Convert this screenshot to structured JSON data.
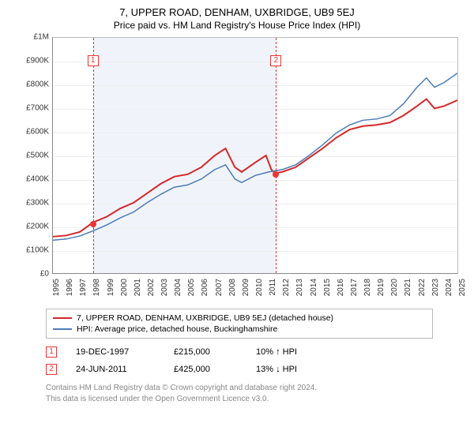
{
  "title": "7, UPPER ROAD, DENHAM, UXBRIDGE, UB9 5EJ",
  "subtitle": "Price paid vs. HM Land Registry's House Price Index (HPI)",
  "chart": {
    "type": "line",
    "background_color": "#ffffff",
    "grid_color": "#eeeeee",
    "axis_color": "#888888",
    "plot_border_color": "#bbbbbb",
    "shaded_band_color": "#f0f4fa",
    "shaded_band": {
      "x_start": 1997.96,
      "x_end": 2011.48
    },
    "xlim": [
      1995,
      2025
    ],
    "ylim": [
      0,
      1000000
    ],
    "y_ticks": [
      {
        "v": 0,
        "label": "£0"
      },
      {
        "v": 100000,
        "label": "£100K"
      },
      {
        "v": 200000,
        "label": "£200K"
      },
      {
        "v": 300000,
        "label": "£300K"
      },
      {
        "v": 400000,
        "label": "£400K"
      },
      {
        "v": 500000,
        "label": "£500K"
      },
      {
        "v": 600000,
        "label": "£600K"
      },
      {
        "v": 700000,
        "label": "£700K"
      },
      {
        "v": 800000,
        "label": "£800K"
      },
      {
        "v": 900000,
        "label": "£900K"
      },
      {
        "v": 1000000,
        "label": "£1M"
      }
    ],
    "x_ticks": [
      1995,
      1996,
      1997,
      1998,
      1999,
      2000,
      2001,
      2002,
      2003,
      2004,
      2005,
      2006,
      2007,
      2008,
      2009,
      2010,
      2011,
      2012,
      2013,
      2014,
      2015,
      2016,
      2017,
      2018,
      2019,
      2020,
      2021,
      2022,
      2023,
      2024,
      2025
    ],
    "tick_fontsize": 10,
    "series": [
      {
        "name": "price_paid",
        "label": "7, UPPER ROAD, DENHAM, UXBRIDGE, UB9 5EJ (detached house)",
        "color": "#d62728",
        "line_width": 2,
        "points": [
          [
            1995,
            155000
          ],
          [
            1996,
            160000
          ],
          [
            1997,
            175000
          ],
          [
            1997.96,
            215000
          ],
          [
            1999,
            240000
          ],
          [
            2000,
            275000
          ],
          [
            2001,
            300000
          ],
          [
            2002,
            340000
          ],
          [
            2003,
            380000
          ],
          [
            2004,
            410000
          ],
          [
            2005,
            420000
          ],
          [
            2006,
            450000
          ],
          [
            2007,
            500000
          ],
          [
            2007.8,
            530000
          ],
          [
            2008.5,
            450000
          ],
          [
            2009,
            430000
          ],
          [
            2010,
            470000
          ],
          [
            2010.8,
            500000
          ],
          [
            2011.2,
            440000
          ],
          [
            2011.48,
            425000
          ],
          [
            2012,
            430000
          ],
          [
            2013,
            450000
          ],
          [
            2014,
            490000
          ],
          [
            2015,
            530000
          ],
          [
            2016,
            575000
          ],
          [
            2017,
            610000
          ],
          [
            2018,
            625000
          ],
          [
            2019,
            630000
          ],
          [
            2020,
            640000
          ],
          [
            2021,
            670000
          ],
          [
            2022,
            710000
          ],
          [
            2022.7,
            740000
          ],
          [
            2023.3,
            700000
          ],
          [
            2024,
            710000
          ],
          [
            2025,
            735000
          ]
        ]
      },
      {
        "name": "hpi",
        "label": "HPI: Average price, detached house, Buckinghamshire",
        "color": "#4a7bb8",
        "line_width": 1.5,
        "points": [
          [
            1995,
            140000
          ],
          [
            1996,
            145000
          ],
          [
            1997,
            158000
          ],
          [
            1998,
            180000
          ],
          [
            1999,
            205000
          ],
          [
            2000,
            235000
          ],
          [
            2001,
            260000
          ],
          [
            2002,
            300000
          ],
          [
            2003,
            335000
          ],
          [
            2004,
            365000
          ],
          [
            2005,
            375000
          ],
          [
            2006,
            400000
          ],
          [
            2007,
            440000
          ],
          [
            2007.8,
            460000
          ],
          [
            2008.5,
            400000
          ],
          [
            2009,
            385000
          ],
          [
            2010,
            415000
          ],
          [
            2011,
            430000
          ],
          [
            2012,
            440000
          ],
          [
            2013,
            460000
          ],
          [
            2014,
            500000
          ],
          [
            2015,
            545000
          ],
          [
            2016,
            595000
          ],
          [
            2017,
            630000
          ],
          [
            2018,
            650000
          ],
          [
            2019,
            655000
          ],
          [
            2020,
            670000
          ],
          [
            2021,
            720000
          ],
          [
            2022,
            790000
          ],
          [
            2022.7,
            830000
          ],
          [
            2023.3,
            790000
          ],
          [
            2024,
            810000
          ],
          [
            2025,
            850000
          ]
        ]
      }
    ],
    "markers": [
      {
        "id": "1",
        "x": 1997.96,
        "y": 215000,
        "box_top_offset": 22,
        "line_color": "#e33333"
      },
      {
        "id": "2",
        "x": 2011.48,
        "y": 425000,
        "box_top_offset": 22,
        "line_color": "#e33333"
      }
    ]
  },
  "legend": {
    "border_color": "#bbbbbb",
    "fontsize": 10.5,
    "items": [
      {
        "color": "#d62728",
        "label_path": "chart.series.0.label"
      },
      {
        "color": "#4a7bb8",
        "label_path": "chart.series.1.label"
      }
    ]
  },
  "sales": [
    {
      "id": "1",
      "date": "19-DEC-1997",
      "price": "£215,000",
      "hpi_delta": "10% ↑ HPI"
    },
    {
      "id": "2",
      "date": "24-JUN-2011",
      "price": "£425,000",
      "hpi_delta": "13% ↓ HPI"
    }
  ],
  "footer": {
    "line1": "Contains HM Land Registry data © Crown copyright and database right 2024.",
    "line2": "This data is licensed under the Open Government Licence v3.0."
  }
}
